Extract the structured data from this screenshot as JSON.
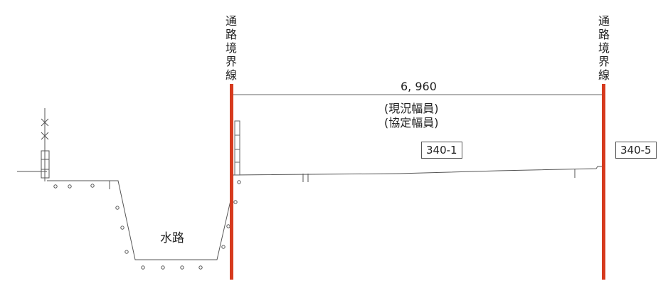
{
  "left_boundary_label": [
    "通",
    "路",
    "境",
    "界",
    "線"
  ],
  "right_boundary_label": [
    "通",
    "路",
    "境",
    "界",
    "線"
  ],
  "width_dimension": "6, 960",
  "current_width_label": "(現況幅員)",
  "agreed_width_label": "(協定幅員)",
  "parcel_center": "340-1",
  "parcel_right": "340-5",
  "waterway_label": "水路",
  "colors": {
    "boundary_line": "#d63a1e",
    "drawing_line": "#555555"
  }
}
